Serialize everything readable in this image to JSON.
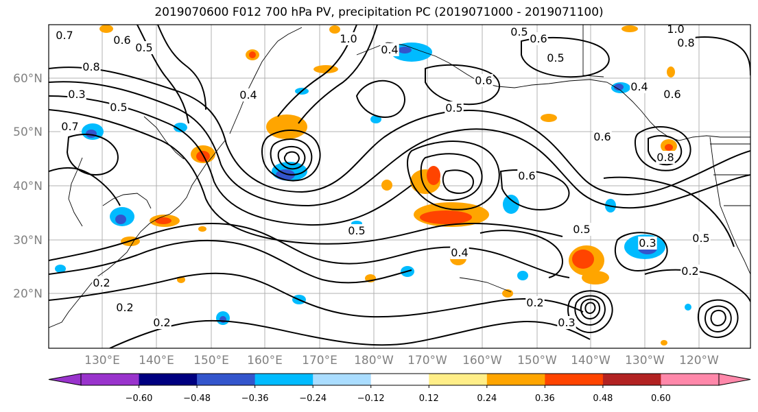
{
  "title": "2019070600 F012 700 hPa PV, precipitation PC (2019071000 - 2019071100)",
  "map": {
    "lat_labels": [
      "20°N",
      "30°N",
      "40°N",
      "50°N",
      "60°N"
    ],
    "lon_labels": [
      "130°E",
      "140°E",
      "150°E",
      "160°E",
      "170°E",
      "180°W",
      "170°W",
      "160°W",
      "150°W",
      "140°W",
      "130°W",
      "120°W"
    ],
    "contour_labels": [
      "0.7",
      "0.6",
      "0.5",
      "1.0",
      "0.5",
      "0.6",
      "1.0",
      "0.8",
      "0.4",
      "0.8",
      "0.5",
      "0.6",
      "0.4",
      "0.3",
      "0.4",
      "0.5",
      "0.7",
      "0.5",
      "0.6",
      "0.6",
      "0.5",
      "0.2",
      "0.2",
      "0.2",
      "0.2",
      "0.4",
      "0.5",
      "0.6",
      "0.8",
      "0.3",
      "0.5",
      "0.2",
      "0.3"
    ],
    "contour_color": "#000000",
    "grid_color": "#b0b0b0"
  },
  "colorbar": {
    "colors": [
      "#9933cc",
      "#000080",
      "#3355cc",
      "#00bbff",
      "#aaddff",
      "#ffffff",
      "#ffee88",
      "#ffa500",
      "#ff4400",
      "#b22222",
      "#ff88aa"
    ],
    "tick_labels": [
      "−0.60",
      "−0.48",
      "−0.36",
      "−0.24",
      "−0.12",
      "0.12",
      "0.24",
      "0.36",
      "0.48",
      "0.60"
    ]
  }
}
